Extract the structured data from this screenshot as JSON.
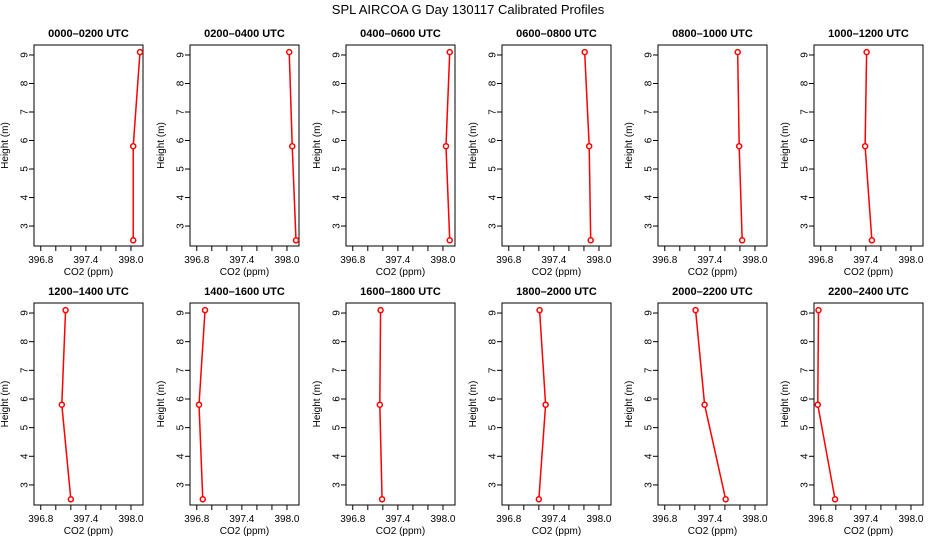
{
  "chart_data": {
    "type": "line",
    "title": "SPL AIRCOA G  Day 130117  Calibrated Profiles",
    "xlabel": "CO2 (ppm)",
    "ylabel": "Height (m)",
    "xlim": [
      396.71,
      398.16
    ],
    "ylim": [
      2.3,
      9.35
    ],
    "xticks": [
      "396.8",
      "397.4",
      "398.0"
    ],
    "xminor_step": 0.2,
    "yticks": [
      "3",
      "4",
      "5",
      "6",
      "7",
      "8",
      "9"
    ],
    "grid": false,
    "line_color": "#ff0000",
    "heights": [
      9.1,
      5.8,
      2.5
    ],
    "panels": [
      {
        "title": "0000–0200 UTC",
        "co2": [
          398.12,
          398.03,
          398.03
        ]
      },
      {
        "title": "0200–0400 UTC",
        "co2": [
          398.03,
          398.07,
          398.12
        ]
      },
      {
        "title": "0400–0600 UTC",
        "co2": [
          398.09,
          398.04,
          398.09
        ]
      },
      {
        "title": "0600–0800 UTC",
        "co2": [
          397.81,
          397.87,
          397.89
        ]
      },
      {
        "title": "0800–1000 UTC",
        "co2": [
          397.77,
          397.79,
          397.83
        ]
      },
      {
        "title": "1000–1200 UTC",
        "co2": [
          397.41,
          397.39,
          397.48
        ]
      },
      {
        "title": "1200–1400 UTC",
        "co2": [
          397.13,
          397.08,
          397.2
        ]
      },
      {
        "title": "1400–1600 UTC",
        "co2": [
          396.91,
          396.83,
          396.88
        ]
      },
      {
        "title": "1600–1800 UTC",
        "co2": [
          397.17,
          397.16,
          397.19
        ]
      },
      {
        "title": "1800–2000 UTC",
        "co2": [
          397.21,
          397.29,
          397.2
        ]
      },
      {
        "title": "2000–2200 UTC",
        "co2": [
          397.21,
          397.33,
          397.61
        ]
      },
      {
        "title": "2200–2400 UTC",
        "co2": [
          396.77,
          396.76,
          396.99
        ]
      }
    ]
  }
}
